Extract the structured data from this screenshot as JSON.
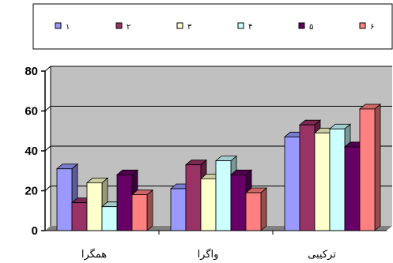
{
  "chart_data": {
    "type": "bar",
    "style": "3d-clustered-column",
    "title": "",
    "xlabel": "",
    "ylabel": "",
    "ylim": [
      0,
      80
    ],
    "yticks": [
      "0",
      "20",
      "40",
      "60",
      "80"
    ],
    "categories": [
      "همگرا",
      "واگرا",
      "ترکیبی"
    ],
    "series": [
      {
        "name": "۱",
        "color": "#9999ff",
        "values": [
          31,
          21,
          47
        ]
      },
      {
        "name": "۲",
        "color": "#993366",
        "values": [
          14,
          33,
          53
        ]
      },
      {
        "name": "۳",
        "color": "#ffffcc",
        "values": [
          24,
          26,
          49
        ]
      },
      {
        "name": "۴",
        "color": "#ccffff",
        "values": [
          12,
          35,
          51
        ]
      },
      {
        "name": "۵",
        "color": "#660066",
        "values": [
          28,
          28,
          42
        ]
      },
      {
        "name": "۶",
        "color": "#ff8080",
        "values": [
          18,
          19,
          61
        ]
      }
    ],
    "grid": true,
    "legend_position": "top"
  }
}
